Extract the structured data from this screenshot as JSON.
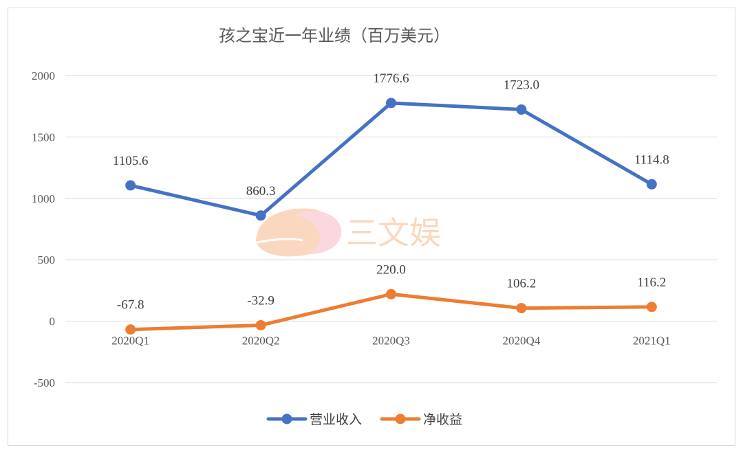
{
  "chart_data": {
    "type": "line",
    "title": "孩之宝近一年业绩（百万美元）",
    "categories": [
      "2020Q1",
      "2020Q2",
      "2020Q3",
      "2020Q4",
      "2021Q1"
    ],
    "series": [
      {
        "name": "营业收入",
        "values": [
          1105.6,
          860.3,
          1776.6,
          1723.0,
          1114.8
        ],
        "labels": [
          "1105.6",
          "860.3",
          "1776.6",
          "1723.0",
          "1114.8"
        ],
        "color": "#4472c4"
      },
      {
        "name": "净收益",
        "values": [
          -67.8,
          -32.9,
          220.0,
          106.2,
          116.2
        ],
        "labels": [
          "-67.8",
          "-32.9",
          "220.0",
          "106.2",
          "116.2"
        ],
        "color": "#ed7d31"
      }
    ],
    "yticks": [
      "2000",
      "1500",
      "1000",
      "500",
      "0",
      "-500"
    ],
    "ylim": [
      -500,
      2000
    ],
    "xlabel": "",
    "ylabel": "",
    "grid": true,
    "legend": "bottom"
  },
  "watermark": {
    "text": "三文娱",
    "color": "#f6b98a"
  }
}
